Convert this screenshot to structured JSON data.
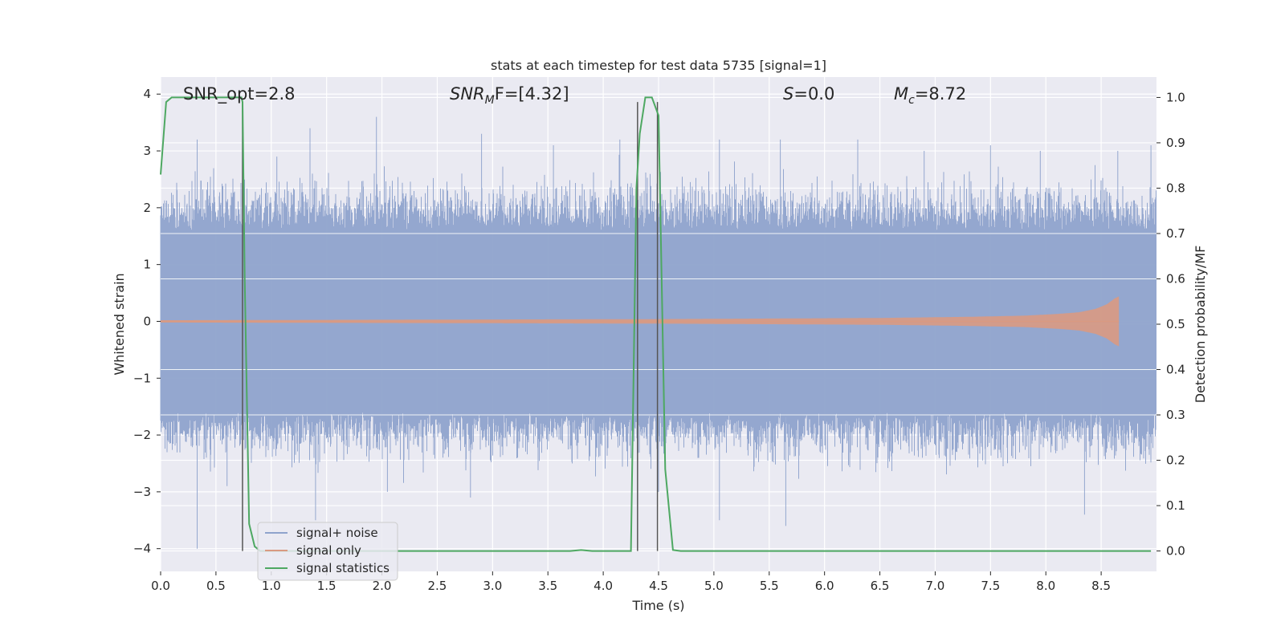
{
  "chart_data": {
    "type": "line",
    "title": "stats at each timestep for test data 5735 [signal=1]",
    "xlabel": "Time (s)",
    "ylabel": "Whitened strain",
    "y2label": "Detection probability/MF",
    "xlim": [
      0.0,
      9.0
    ],
    "ylim": [
      -4.4,
      4.3
    ],
    "y2lim": [
      -0.045,
      1.045
    ],
    "xticks": [
      0.0,
      0.5,
      1.0,
      1.5,
      2.0,
      2.5,
      3.0,
      3.5,
      4.0,
      4.5,
      5.0,
      5.5,
      6.0,
      6.5,
      7.0,
      7.5,
      8.0,
      8.5
    ],
    "xtick_labels": [
      "0.0",
      "0.5",
      "1.0",
      "1.5",
      "2.0",
      "2.5",
      "3.0",
      "3.5",
      "4.0",
      "4.5",
      "5.0",
      "5.5",
      "6.0",
      "6.5",
      "7.0",
      "7.5",
      "8.0",
      "8.5"
    ],
    "yticks": [
      4,
      3,
      2,
      1,
      0,
      -1,
      -2,
      -3,
      -4
    ],
    "ytick_labels": [
      "4",
      "3",
      "2",
      "1",
      "0",
      "−1",
      "−2",
      "−3",
      "−4"
    ],
    "y2ticks": [
      1.0,
      0.9,
      0.8,
      0.7,
      0.6,
      0.5,
      0.4,
      0.3,
      0.2,
      0.1,
      0.0
    ],
    "y2tick_labels": [
      "1.0",
      "0.9",
      "0.8",
      "0.7",
      "0.6",
      "0.5",
      "0.4",
      "0.3",
      "0.2",
      "0.1",
      "0.0"
    ],
    "grid": true,
    "legend_position": "lower-left",
    "annotations": {
      "snr_opt": "SNR_opt=2.8",
      "snr_mf_main": "SNR",
      "snr_mf_sub": "M",
      "snr_mf_rest": "F=[4.32]",
      "s_main": "S",
      "s_rest": "=0.0",
      "mc_main": "M",
      "mc_sub": "c",
      "mc_rest": "=8.72"
    },
    "series": [
      {
        "name": "signal+ noise",
        "color": "#8fa3cc",
        "axis": "left",
        "x_range": [
          0.0,
          9.0
        ],
        "envelope_typical": 1.6,
        "peak_samples": [
          [
            0.33,
            3.2
          ],
          [
            0.33,
            -4.0
          ],
          [
            0.6,
            -2.9
          ],
          [
            1.05,
            2.9
          ],
          [
            1.35,
            3.4
          ],
          [
            1.4,
            -3.5
          ],
          [
            1.95,
            3.6
          ],
          [
            2.05,
            -3.0
          ],
          [
            2.9,
            3.3
          ],
          [
            2.8,
            -3.1
          ],
          [
            3.55,
            3.1
          ],
          [
            4.15,
            3.2
          ],
          [
            4.5,
            -3.0
          ],
          [
            5.05,
            3.2
          ],
          [
            5.05,
            -3.5
          ],
          [
            5.6,
            3.2
          ],
          [
            5.65,
            -3.6
          ],
          [
            6.3,
            3.2
          ],
          [
            6.9,
            3.0
          ],
          [
            7.5,
            3.1
          ],
          [
            7.95,
            3.0
          ],
          [
            8.35,
            -3.4
          ],
          [
            8.65,
            3.0
          ],
          [
            8.95,
            3.1
          ]
        ]
      },
      {
        "name": "signal only",
        "color": "#d99a82",
        "axis": "left",
        "x": [
          0.0,
          4.5,
          5.5,
          6.5,
          7.3,
          7.8,
          8.1,
          8.3,
          8.45,
          8.55,
          8.62,
          8.66
        ],
        "amplitude": [
          0.0,
          0.02,
          0.03,
          0.04,
          0.06,
          0.08,
          0.11,
          0.14,
          0.2,
          0.28,
          0.38,
          0.42
        ]
      },
      {
        "name": "signal statistics",
        "color": "#4ea862",
        "axis": "right",
        "x": [
          0.0,
          0.05,
          0.1,
          0.73,
          0.74,
          0.76,
          0.8,
          0.85,
          0.9,
          3.7,
          3.8,
          3.9,
          4.25,
          4.3,
          4.33,
          4.38,
          4.44,
          4.5,
          4.56,
          4.63,
          4.7,
          8.95
        ],
        "y": [
          0.83,
          0.99,
          1.0,
          1.0,
          0.99,
          0.6,
          0.06,
          0.01,
          0.0,
          0.0,
          0.002,
          0.0,
          0.0,
          0.8,
          0.92,
          1.0,
          1.0,
          0.96,
          0.18,
          0.002,
          0.0,
          0.0
        ]
      }
    ],
    "vertical_markers": [
      {
        "x": 0.74,
        "y2_top": 0.985
      },
      {
        "x": 4.31,
        "y2_top": 0.99
      },
      {
        "x": 4.49,
        "y2_top": 0.99
      }
    ]
  }
}
